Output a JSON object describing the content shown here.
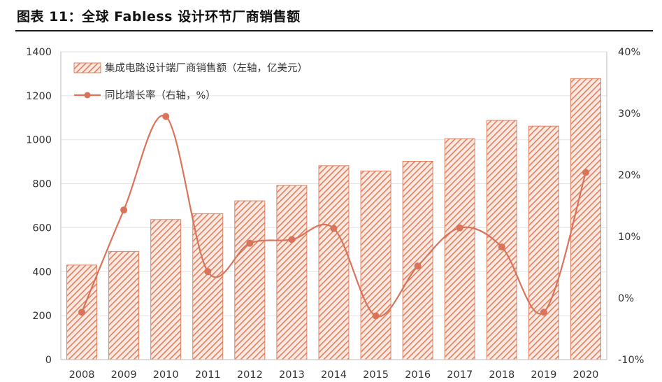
{
  "figure_title": "图表 11：全球 Fabless 设计环节厂商销售额",
  "chart_data": {
    "type": "bar",
    "categories": [
      "2008",
      "2009",
      "2010",
      "2011",
      "2012",
      "2013",
      "2014",
      "2015",
      "2016",
      "2017",
      "2018",
      "2019",
      "2020"
    ],
    "series": [
      {
        "name": "集成电路设计端厂商销售额（左轴，亿美元）",
        "type": "bar",
        "axis": "left",
        "values": [
          430,
          492,
          637,
          664,
          722,
          792,
          882,
          858,
          902,
          1005,
          1088,
          1062,
          1278
        ],
        "color": "#e08060"
      },
      {
        "name": "同比增长率（右轴，%）",
        "type": "line",
        "axis": "right",
        "values": [
          -2.3,
          14.3,
          29.5,
          4.3,
          8.9,
          9.5,
          11.3,
          -2.9,
          5.2,
          11.4,
          8.3,
          -2.3,
          20.4
        ],
        "color": "#d9745a"
      }
    ],
    "y_left": {
      "min": 0,
      "max": 1400,
      "ticks": [
        0,
        200,
        400,
        600,
        800,
        1000,
        1200,
        1400
      ]
    },
    "y_right": {
      "min": -10,
      "max": 40,
      "ticks": [
        "-10%",
        "0%",
        "10%",
        "20%",
        "30%",
        "40%"
      ]
    },
    "grid": "horizontal",
    "legend_position": "top-left"
  }
}
